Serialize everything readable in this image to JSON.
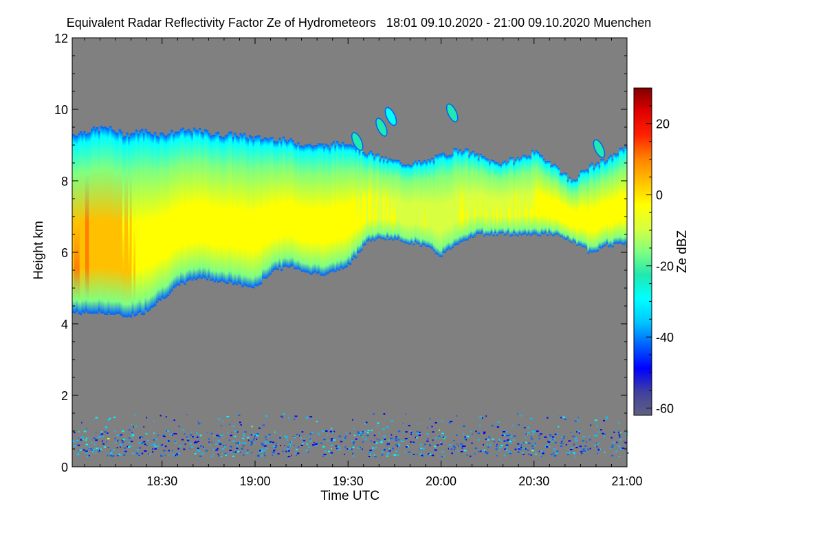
{
  "chart_data": {
    "type": "heatmap",
    "title": "Equivalent Radar Reflectivity Factor Ze of Hydrometeors   18:01 09.10.2020 - 21:00 09.10.2020 Muenchen",
    "xlabel": "Time UTC",
    "ylabel": "Height km",
    "xlim": [
      18.0167,
      21.0
    ],
    "ylim": [
      0,
      12
    ],
    "x_ticks": [
      {
        "value": 18.5,
        "label": "18:30"
      },
      {
        "value": 19.0,
        "label": "19:00"
      },
      {
        "value": 19.5,
        "label": "19:30"
      },
      {
        "value": 20.0,
        "label": "20:00"
      },
      {
        "value": 20.5,
        "label": "20:30"
      },
      {
        "value": 21.0,
        "label": "21:00"
      }
    ],
    "y_ticks": [
      {
        "value": 0,
        "label": "0"
      },
      {
        "value": 2,
        "label": "2"
      },
      {
        "value": 4,
        "label": "4"
      },
      {
        "value": 6,
        "label": "6"
      },
      {
        "value": 8,
        "label": "8"
      },
      {
        "value": 10,
        "label": "10"
      },
      {
        "value": 12,
        "label": "12"
      }
    ],
    "colorbar": {
      "label": "Ze dBZ",
      "range": [
        -62,
        30
      ],
      "ticks": [
        {
          "value": 20,
          "label": "20"
        },
        {
          "value": 0,
          "label": "0"
        },
        {
          "value": -20,
          "label": "-20"
        },
        {
          "value": -40,
          "label": "-40"
        },
        {
          "value": -60,
          "label": "-60"
        }
      ],
      "colors": [
        "#606080",
        "#4040a0",
        "#0000ff",
        "#0060ff",
        "#00c8ff",
        "#00ffff",
        "#20e8b0",
        "#80ff80",
        "#d8ff40",
        "#ffff00",
        "#ffc000",
        "#ff8000",
        "#ff2000",
        "#e00000",
        "#800000"
      ]
    },
    "no_data_color": "#808080",
    "cloud_layer": {
      "times": [
        18.0167,
        18.1,
        18.2,
        18.3,
        18.4,
        18.5,
        18.6,
        18.7,
        18.8,
        18.9,
        19.0,
        19.1,
        19.2,
        19.3,
        19.4,
        19.5,
        19.6,
        19.7,
        19.8,
        19.9,
        20.0,
        20.1,
        20.2,
        20.3,
        20.4,
        20.5,
        20.6,
        20.7,
        20.8,
        20.9,
        21.0
      ],
      "top_km": [
        9.3,
        9.4,
        9.5,
        9.3,
        9.4,
        9.3,
        9.4,
        9.4,
        9.3,
        9.3,
        9.2,
        9.2,
        9.1,
        9.0,
        9.0,
        9.1,
        8.8,
        8.6,
        8.5,
        8.5,
        8.7,
        8.9,
        8.7,
        8.5,
        8.6,
        8.8,
        8.5,
        8.0,
        8.4,
        8.6,
        9.0
      ],
      "base_km": [
        4.3,
        4.3,
        4.3,
        4.2,
        4.3,
        4.7,
        5.1,
        5.3,
        5.2,
        5.1,
        5.0,
        5.5,
        5.6,
        5.4,
        5.4,
        5.6,
        6.3,
        6.4,
        6.3,
        6.2,
        5.9,
        6.3,
        6.5,
        6.5,
        6.5,
        6.5,
        6.5,
        6.3,
        6.0,
        6.2,
        6.2
      ],
      "core_dbz": [
        6,
        6,
        4,
        0,
        -2,
        -3,
        -4,
        -3,
        -2,
        -3,
        -3,
        -4,
        -4,
        -2,
        -2,
        -4,
        -6,
        -7,
        -8,
        -8,
        -9,
        -7,
        -8,
        -8,
        -7,
        -6,
        -4,
        -3,
        -2,
        -4,
        -4
      ]
    },
    "upper_fragments": [
      {
        "time": 19.55,
        "height_km": 9.1,
        "dbz": -25
      },
      {
        "time": 19.68,
        "height_km": 9.5,
        "dbz": -24
      },
      {
        "time": 19.73,
        "height_km": 9.8,
        "dbz": -26
      },
      {
        "time": 20.06,
        "height_km": 9.9,
        "dbz": -20
      },
      {
        "time": 20.85,
        "height_km": 8.9,
        "dbz": -25
      }
    ],
    "boundary_layer_clutter": {
      "height_range_km": [
        0.3,
        1.5
      ],
      "dbz_range": [
        -50,
        -30
      ]
    }
  }
}
